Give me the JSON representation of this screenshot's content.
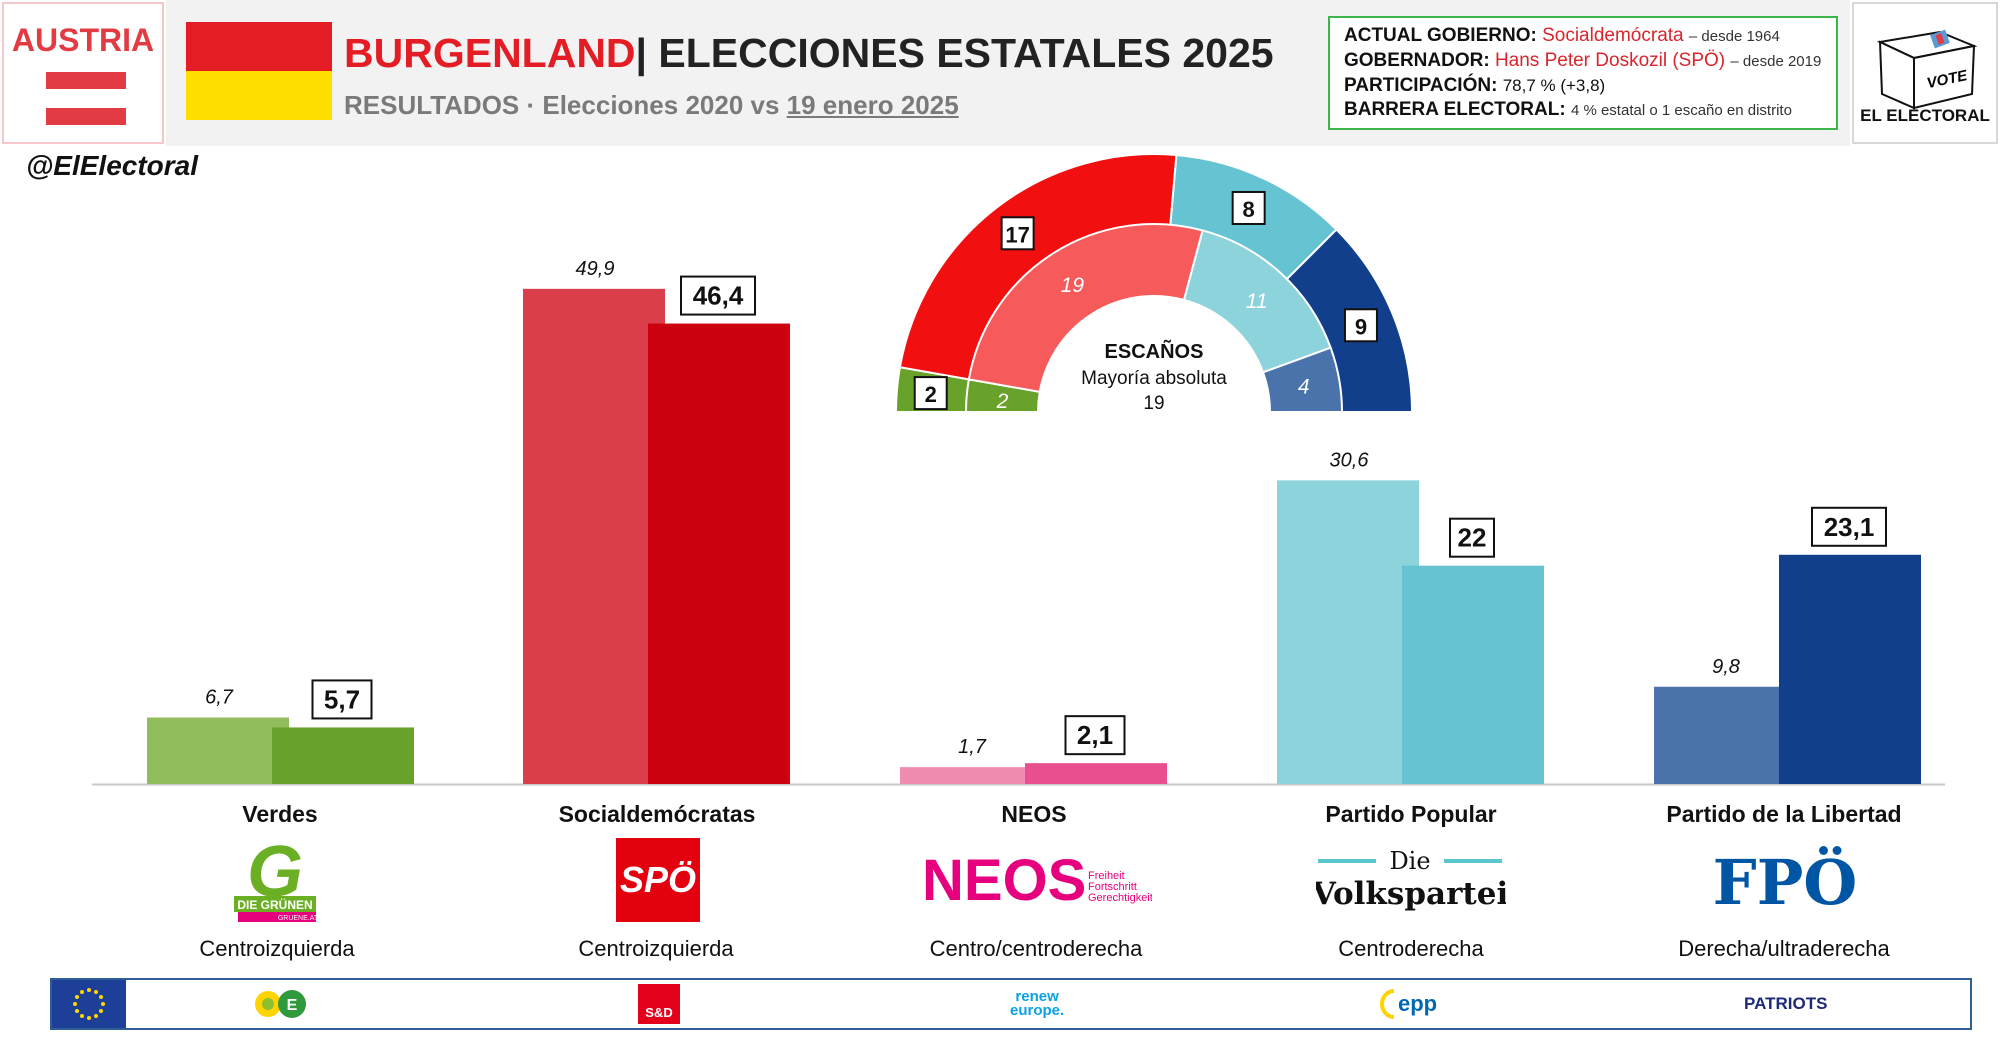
{
  "header": {
    "country": "AUSTRIA",
    "region": "BURGENLAND",
    "title_rest": "| ELECCIONES ESTATALES 2025",
    "subtitle_prefix": "RESULTADOS",
    "subtitle_middle": " · Elecciones 2020 vs ",
    "subtitle_date": "19 enero 2025"
  },
  "info": {
    "gov_label": "ACTUAL GOBIERNO:",
    "gov_value": "Socialdemócrata",
    "gov_since": "– desde 1964",
    "governor_label": "GOBERNADOR:",
    "governor_value": "Hans Peter Doskozil (SPÖ)",
    "governor_since": "– desde 2019",
    "turnout_label": "PARTICIPACIÓN:",
    "turnout_value": "78,7 % (+3,8)",
    "threshold_label": "BARRERA ELECTORAL:",
    "threshold_value": "4 % estatal o 1 escaño en distrito"
  },
  "brand": {
    "handle": "@ElElectoral",
    "vote_text": "VOTE",
    "name": "EL ELECTORAL"
  },
  "logos": {
    "verdes_main": "G",
    "verdes_band": "DIE GRÜNEN",
    "verdes_url": "GRUENE.AT",
    "spo": "SPÖ",
    "neos": "NEOS",
    "neos_tag1": "Freiheit",
    "neos_tag2": "Fortschritt",
    "neos_tag3": "Gerechtigkeit",
    "ovp_die": "Die",
    "ovp_main": "Volkspartei",
    "fpo": "FPÖ"
  },
  "eu_groups": {
    "sd": "S&D",
    "renew1": "renew",
    "renew2": "europe.",
    "epp": "epp",
    "patriots": "PATRIOTS"
  },
  "chart_data": [
    {
      "type": "bar",
      "title": "",
      "categories": [
        "Verdes",
        "Socialdemócratas",
        "NEOS",
        "Partido Popular",
        "Partido de la Libertad"
      ],
      "ideologies": [
        "Centroizquierda",
        "Centroizquierda",
        "Centro/centroderecha",
        "Centroderecha",
        "Derecha/ultraderecha"
      ],
      "series": [
        {
          "name": "2020",
          "values": [
            6.7,
            49.9,
            1.7,
            30.6,
            9.8
          ],
          "labels": [
            "6,7",
            "49,9",
            "1,7",
            "30,6",
            "9,8"
          ]
        },
        {
          "name": "2025",
          "values": [
            5.7,
            46.4,
            2.1,
            22,
            23.1
          ],
          "labels": [
            "5,7",
            "46,4",
            "2,1",
            "22",
            "23,1"
          ]
        }
      ],
      "colors_2020": [
        "#92bd5c",
        "#db3e4b",
        "#f08cb2",
        "#8dd3dc",
        "#4a72ab"
      ],
      "colors_2025": [
        "#69a22a",
        "#cd0010",
        "#e94f8e",
        "#66c4d2",
        "#123f8b"
      ],
      "ylim": [
        0,
        52
      ],
      "grid": false
    },
    {
      "type": "pie",
      "title": "ESCAÑOS",
      "subtitle": "Mayoría absoluta",
      "majority": "19",
      "parties": [
        "Verdes",
        "Socialdemócratas",
        "Partido Popular",
        "Partido de la Libertad"
      ],
      "seats_2025": [
        2,
        17,
        8,
        9
      ],
      "seats_2020": [
        2,
        19,
        11,
        4
      ],
      "colors_outer": [
        "#69a22a",
        "#f20f0f",
        "#66c4d2",
        "#123f8b"
      ],
      "colors_inner": [
        "#69a22a",
        "#f65a5a",
        "#8dd3dc",
        "#4a72ab"
      ]
    }
  ]
}
